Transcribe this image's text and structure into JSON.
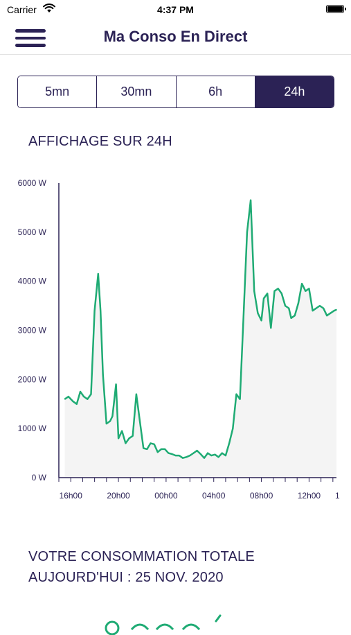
{
  "status_bar": {
    "carrier": "Carrier",
    "time": "4:37 PM"
  },
  "nav": {
    "title": "Ma Conso En Direct"
  },
  "segments": [
    {
      "label": "5mn",
      "active": false
    },
    {
      "label": "30mn",
      "active": false
    },
    {
      "label": "6h",
      "active": false
    },
    {
      "label": "24h",
      "active": true
    }
  ],
  "section_title": "AFFICHAGE SUR 24H",
  "chart_data": {
    "type": "area",
    "title": "",
    "xlabel": "",
    "ylabel": "",
    "ylim": [
      0,
      6000
    ],
    "y_ticks": [
      "0 W",
      "1000 W",
      "2000 W",
      "3000 W",
      "4000 W",
      "5000 W",
      "6000 W"
    ],
    "x_ticks": [
      "16h00",
      "20h00",
      "00h00",
      "04h00",
      "08h00",
      "12h00",
      "1"
    ],
    "x_range_hours": [
      15.0,
      38.3
    ],
    "grid": false,
    "line_color": "#1fab74",
    "fill_color": "#f4f4f4",
    "series": [
      {
        "x": [
          15.5,
          15.8,
          16.2,
          16.5,
          16.8,
          17.1,
          17.4,
          17.7,
          18.0,
          18.3,
          18.5,
          18.7,
          19.0,
          19.3,
          19.5,
          19.8,
          20.0,
          20.3,
          20.6,
          20.9,
          21.2,
          21.5,
          21.8,
          22.1,
          22.4,
          22.7,
          23.0,
          23.3,
          23.6,
          23.9,
          24.2,
          24.5,
          24.8,
          25.1,
          25.4,
          25.7,
          26.0,
          26.3,
          26.6,
          26.9,
          27.2,
          27.5,
          27.8,
          28.1,
          28.4,
          28.7,
          29.0,
          29.3,
          29.6,
          29.9,
          30.2,
          30.5,
          30.8,
          31.1,
          31.4,
          31.7,
          32.0,
          32.2,
          32.5,
          32.8,
          33.1,
          33.4,
          33.7,
          34.0,
          34.3,
          34.5,
          34.8,
          35.1,
          35.4,
          35.7,
          36.0,
          36.3,
          36.6,
          36.9,
          37.2,
          37.5,
          37.8,
          38.1,
          38.3
        ],
        "y": [
          1600,
          1650,
          1550,
          1500,
          1750,
          1650,
          1600,
          1700,
          3400,
          4150,
          3400,
          2100,
          1100,
          1150,
          1250,
          1900,
          800,
          950,
          700,
          800,
          850,
          1700,
          1150,
          600,
          580,
          700,
          680,
          520,
          580,
          580,
          500,
          480,
          450,
          450,
          400,
          420,
          450,
          500,
          550,
          480,
          400,
          500,
          450,
          470,
          420,
          500,
          450,
          700,
          1000,
          1700,
          1600,
          3300,
          5000,
          5650,
          3800,
          3350,
          3200,
          3650,
          3750,
          3050,
          3800,
          3850,
          3750,
          3500,
          3450,
          3250,
          3300,
          3550,
          3950,
          3800,
          3850,
          3400,
          3450,
          3500,
          3450,
          3300,
          3350,
          3400,
          3420
        ]
      }
    ]
  },
  "total": {
    "line1": "VOTRE CONSOMMATION TOTALE",
    "line2": "AUJOURD'HUI : 25 NOV. 2020"
  }
}
